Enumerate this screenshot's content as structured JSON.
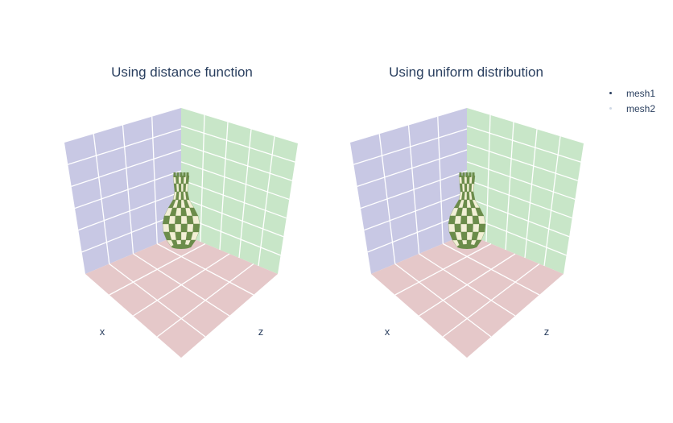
{
  "chart_data": [
    {
      "type": "mesh3d",
      "title": "Using distance function",
      "scene_axes": {
        "x": "x",
        "z": "z"
      },
      "walls": {
        "xz_floor": "#e5c8c9",
        "back_left": "#c8c8e4",
        "back_right": "#c8e6c8"
      },
      "object": "checkered vase"
    },
    {
      "type": "mesh3d",
      "title": "Using uniform distribution",
      "scene_axes": {
        "x": "x",
        "z": "z"
      },
      "walls": {
        "xz_floor": "#e5c8c9",
        "back_left": "#c8c8e4",
        "back_right": "#c8e6c8"
      },
      "object": "checkered vase"
    }
  ],
  "legend": {
    "items": [
      {
        "name": "mesh1",
        "color": "#2a3f5f"
      },
      {
        "name": "mesh2",
        "color": "#cfd8e6"
      }
    ]
  },
  "colors": {
    "checker_dark": "#6b8c4a",
    "checker_light": "#f2efd5"
  }
}
